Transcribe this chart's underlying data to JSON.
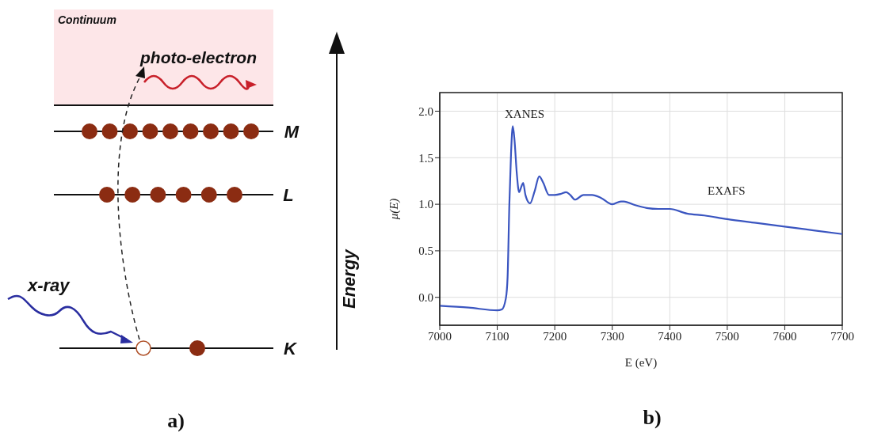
{
  "chart_data": [
    {
      "type": "other",
      "annotations": [
        "Continuum",
        "photo-electron",
        "M",
        "L",
        "K",
        "x-ray",
        "Energy",
        "a)"
      ]
    },
    {
      "type": "line",
      "xlabel": "E (eV)",
      "ylabel": "μ(E)",
      "annotations": [
        "XANES",
        "EXAFS",
        "b)"
      ],
      "grid": true,
      "xlim": [
        7000,
        7700
      ],
      "xticks": [
        7000,
        7100,
        7200,
        7300,
        7400,
        7500,
        7600,
        7700
      ],
      "ylim": [
        -0.3,
        2.2
      ],
      "yticks": [
        {
          "value": 0,
          "label": "0.0"
        },
        0.5,
        {
          "value": 1,
          "label": "1.0"
        },
        1.5,
        {
          "value": 2,
          "label": "2.0"
        }
      ],
      "series": [
        {
          "color": "#3a55c0",
          "x": [
            7000,
            7050,
            7100,
            7108,
            7115,
            7118,
            7121,
            7124,
            7127,
            7130,
            7134,
            7138,
            7142,
            7145,
            7149,
            7157,
            7165,
            7173,
            7180,
            7190,
            7200,
            7210,
            7220,
            7227,
            7235,
            7250,
            7265,
            7280,
            7300,
            7315,
            7320,
            7340,
            7360,
            7380,
            7400,
            7430,
            7460,
            7500,
            7550,
            7600,
            7650,
            7700
          ],
          "values": [
            -0.09,
            -0.11,
            -0.14,
            -0.13,
            -0.01,
            0.22,
            0.99,
            1.55,
            1.84,
            1.69,
            1.33,
            1.13,
            1.19,
            1.23,
            1.1,
            1.01,
            1.14,
            1.3,
            1.23,
            1.1,
            1.1,
            1.11,
            1.13,
            1.1,
            1.05,
            1.1,
            1.1,
            1.07,
            1.0,
            1.03,
            1.03,
            0.99,
            0.96,
            0.95,
            0.95,
            0.9,
            0.88,
            0.84,
            0.8,
            0.76,
            0.72,
            0.68
          ]
        }
      ]
    }
  ]
}
